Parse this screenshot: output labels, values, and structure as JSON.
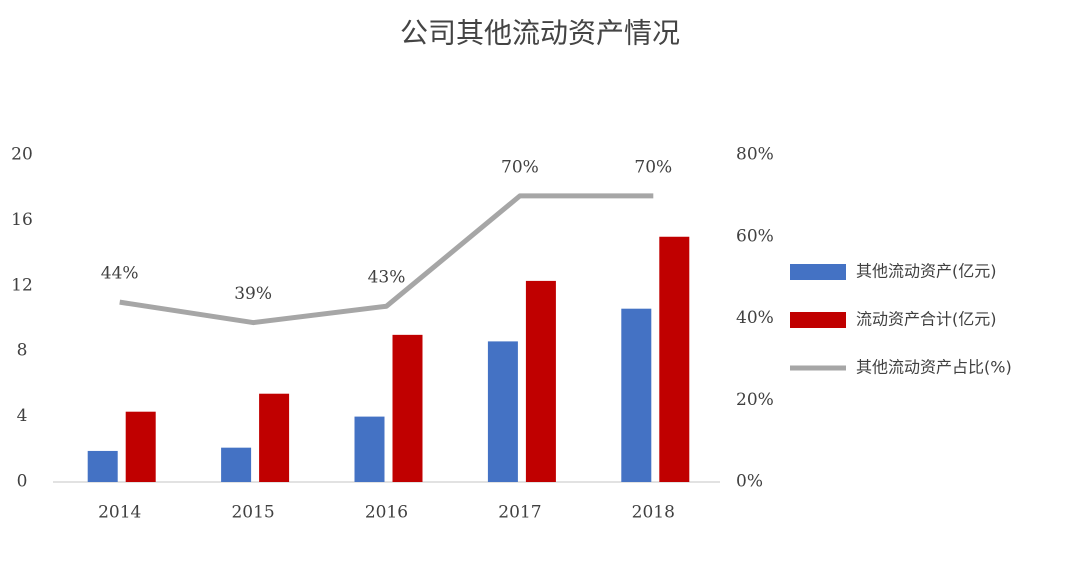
{
  "chart_data": {
    "type": "bar-line",
    "title": "公司其他流动资产情况",
    "categories": [
      "2014",
      "2015",
      "2016",
      "2017",
      "2018"
    ],
    "series": [
      {
        "name": "其他流动资产(亿元)",
        "type": "bar",
        "color": "#4472c4",
        "values": [
          1.9,
          2.1,
          4.0,
          8.6,
          10.6
        ]
      },
      {
        "name": "流动资产合计(亿元)",
        "type": "bar",
        "color": "#c00000",
        "values": [
          4.3,
          5.4,
          9.0,
          12.3,
          15.0
        ]
      },
      {
        "name": "其他流动资产占比(%)",
        "type": "line",
        "axis": "y2",
        "color": "#a6a6a6",
        "values": [
          44,
          39,
          43,
          70,
          70
        ],
        "value_labels": [
          "44%",
          "39%",
          "43%",
          "70%",
          "70%"
        ]
      }
    ],
    "ylim": [
      0,
      20
    ],
    "yticks": [
      0,
      4,
      8,
      12,
      16,
      20
    ],
    "y2lim": [
      0,
      80
    ],
    "y2ticks": [
      {
        "value": 0,
        "label": "0%"
      },
      {
        "value": 20,
        "label": "20%"
      },
      {
        "value": 40,
        "label": "40%"
      },
      {
        "value": 60,
        "label": "60%"
      },
      {
        "value": 80,
        "label": "80%"
      }
    ],
    "grid": false,
    "legend": "right"
  }
}
